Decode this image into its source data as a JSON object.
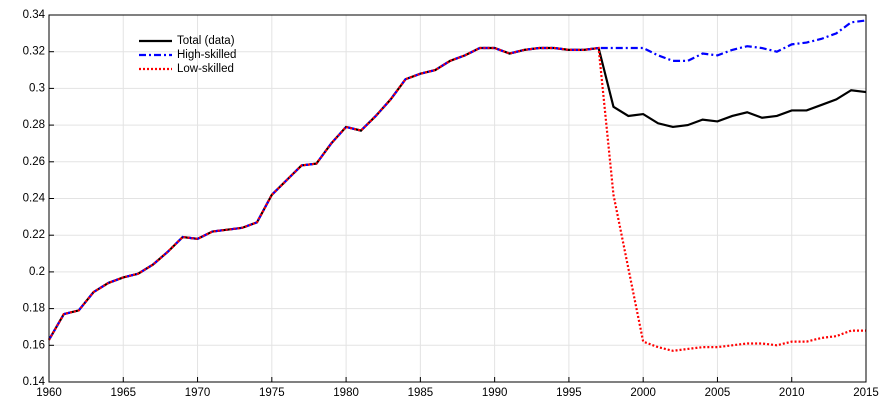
{
  "chart_data": {
    "type": "line",
    "x": [
      1960,
      1961,
      1962,
      1963,
      1964,
      1965,
      1966,
      1967,
      1968,
      1969,
      1970,
      1971,
      1972,
      1973,
      1974,
      1975,
      1976,
      1977,
      1978,
      1979,
      1980,
      1981,
      1982,
      1983,
      1984,
      1985,
      1986,
      1987,
      1988,
      1989,
      1990,
      1991,
      1992,
      1993,
      1994,
      1995,
      1996,
      1997,
      1998,
      1999,
      2000,
      2001,
      2002,
      2003,
      2004,
      2005,
      2006,
      2007,
      2008,
      2009,
      2010,
      2011,
      2012,
      2013,
      2014,
      2015
    ],
    "series": [
      {
        "name": "Total (data)",
        "color": "#000000",
        "linestyle": "solid",
        "values": [
          0.163,
          0.177,
          0.179,
          0.189,
          0.194,
          0.197,
          0.199,
          0.204,
          0.211,
          0.219,
          0.218,
          0.222,
          0.223,
          0.224,
          0.227,
          0.242,
          0.25,
          0.258,
          0.259,
          0.27,
          0.279,
          0.277,
          0.285,
          0.294,
          0.305,
          0.308,
          0.31,
          0.315,
          0.318,
          0.322,
          0.322,
          0.319,
          0.321,
          0.322,
          0.322,
          0.321,
          0.321,
          0.322,
          0.29,
          0.285,
          0.286,
          0.281,
          0.279,
          0.28,
          0.283,
          0.282,
          0.285,
          0.287,
          0.284,
          0.285,
          0.288,
          0.288,
          0.291,
          0.294,
          0.299,
          0.298
        ]
      },
      {
        "name": "High-skilled",
        "color": "#0000ff",
        "linestyle": "dashdot",
        "values": [
          0.163,
          0.177,
          0.179,
          0.189,
          0.194,
          0.197,
          0.199,
          0.204,
          0.211,
          0.219,
          0.218,
          0.222,
          0.223,
          0.224,
          0.227,
          0.242,
          0.25,
          0.258,
          0.259,
          0.27,
          0.279,
          0.277,
          0.285,
          0.294,
          0.305,
          0.308,
          0.31,
          0.315,
          0.318,
          0.322,
          0.322,
          0.319,
          0.321,
          0.322,
          0.322,
          0.321,
          0.321,
          0.322,
          0.322,
          0.322,
          0.322,
          0.318,
          0.315,
          0.315,
          0.319,
          0.318,
          0.321,
          0.323,
          0.322,
          0.32,
          0.324,
          0.325,
          0.327,
          0.33,
          0.336,
          0.337
        ]
      },
      {
        "name": "Low-skilled",
        "color": "#ff0000",
        "linestyle": "dotted",
        "values": [
          0.163,
          0.177,
          0.179,
          0.189,
          0.194,
          0.197,
          0.199,
          0.204,
          0.211,
          0.219,
          0.218,
          0.222,
          0.223,
          0.224,
          0.227,
          0.242,
          0.25,
          0.258,
          0.259,
          0.27,
          0.279,
          0.277,
          0.285,
          0.294,
          0.305,
          0.308,
          0.31,
          0.315,
          0.318,
          0.322,
          0.322,
          0.319,
          0.321,
          0.322,
          0.322,
          0.321,
          0.321,
          0.322,
          0.242,
          0.202,
          0.162,
          0.159,
          0.157,
          0.158,
          0.159,
          0.159,
          0.16,
          0.161,
          0.161,
          0.16,
          0.162,
          0.162,
          0.164,
          0.165,
          0.168,
          0.168
        ]
      }
    ],
    "xlim": [
      1960,
      2015
    ],
    "xticks": [
      1960,
      1965,
      1970,
      1975,
      1980,
      1985,
      1990,
      1995,
      2000,
      2005,
      2010,
      2015
    ],
    "ylim": [
      0.14,
      0.34
    ],
    "yticks": [
      0.14,
      0.16,
      0.18,
      0.2,
      0.22,
      0.24,
      0.26,
      0.28,
      0.3,
      0.32,
      0.34
    ],
    "grid": true,
    "legend": "upper left"
  }
}
